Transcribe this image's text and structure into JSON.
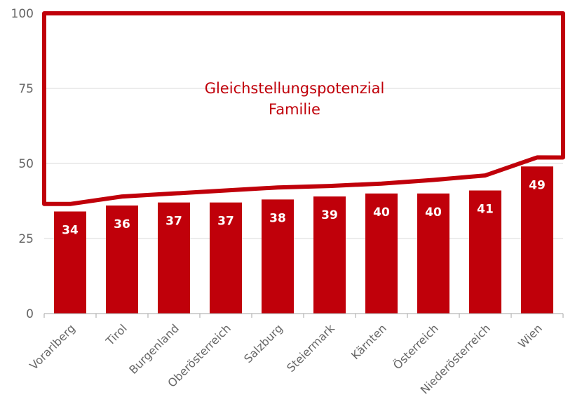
{
  "chart_data": {
    "type": "bar",
    "categories": [
      "Vorarlberg",
      "Tirol",
      "Burgenland",
      "Oberösterreich",
      "Salzburg",
      "Steiermark",
      "Kärnten",
      "Österreich",
      "Niederösterreich",
      "Wien"
    ],
    "values": [
      34,
      36,
      37,
      37,
      38,
      39,
      40,
      40,
      41,
      49
    ],
    "ylim": [
      0,
      100
    ],
    "yticks": [
      0,
      25,
      50,
      75,
      100
    ],
    "grid": true,
    "legend": "none",
    "annotation": {
      "line1": "Gleichstellungspotenzial",
      "line2": "Familie"
    },
    "potential_outline": {
      "upper": 100,
      "lower": [
        36.5,
        39,
        40,
        41,
        42,
        42.5,
        43.3,
        44.5,
        46,
        52
      ]
    },
    "colors": {
      "bar": "#c0000a",
      "outline": "#c0000a",
      "grid": "#d9d9d9",
      "axis": "#a6a6a6"
    }
  }
}
